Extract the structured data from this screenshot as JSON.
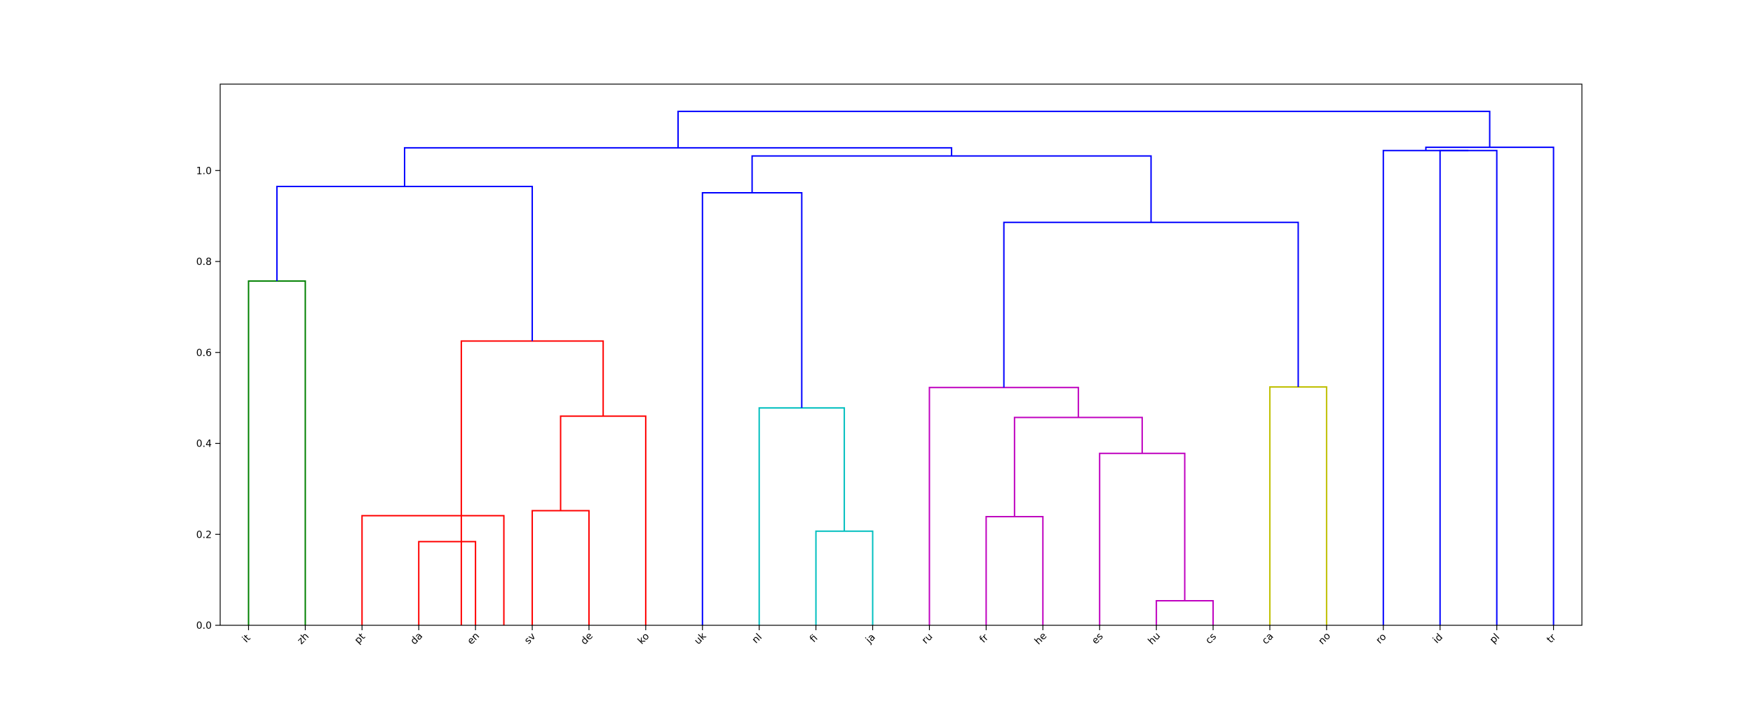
{
  "chart_data": {
    "type": "dendrogram",
    "title": "",
    "xlabel": "",
    "ylabel": "",
    "ylim": [
      0,
      1.19
    ],
    "yticks": [
      "0.0",
      "0.2",
      "0.4",
      "0.6",
      "0.8",
      "1.0"
    ],
    "grid": false,
    "legend": "none",
    "leaves": [
      "it",
      "zh",
      "pt",
      "da",
      "en",
      "sv",
      "de",
      "ko",
      "uk",
      "nl",
      "fi",
      "ja",
      "ru",
      "fr",
      "he",
      "es",
      "hu",
      "cs",
      "ca",
      "no",
      "ro",
      "id",
      "pl",
      "tr"
    ],
    "links": [
      {
        "left": 0,
        "right": 1,
        "height": 0.757,
        "color": "green"
      },
      {
        "left": 3,
        "right": 4,
        "height": 0.184,
        "color": "red"
      },
      {
        "left": 2,
        "right": 4.5,
        "height": 0.241,
        "color": "red"
      },
      {
        "left": 5,
        "right": 6,
        "height": 0.252,
        "color": "red"
      },
      {
        "left": 5.5,
        "right": 7,
        "height": 0.46,
        "color": "red"
      },
      {
        "left": 3.75,
        "right": 6.25,
        "height": 0.625,
        "color": "red"
      },
      {
        "left": 0.5,
        "right": 5.0,
        "height": 0.965,
        "color": "blue"
      },
      {
        "left": 10,
        "right": 11,
        "height": 0.207,
        "color": "cyan"
      },
      {
        "left": 9,
        "right": 10.5,
        "height": 0.478,
        "color": "cyan"
      },
      {
        "left": 8,
        "right": 9.75,
        "height": 0.951,
        "color": "blue"
      },
      {
        "left": 13,
        "right": 14,
        "height": 0.239,
        "color": "magenta"
      },
      {
        "left": 16,
        "right": 17,
        "height": 0.054,
        "color": "magenta"
      },
      {
        "left": 15,
        "right": 16.5,
        "height": 0.378,
        "color": "magenta"
      },
      {
        "left": 13.5,
        "right": 15.75,
        "height": 0.457,
        "color": "magenta"
      },
      {
        "left": 12,
        "right": 14.625,
        "height": 0.523,
        "color": "magenta"
      },
      {
        "left": 18,
        "right": 19,
        "height": 0.524,
        "color": "yellow"
      },
      {
        "left": 13.3125,
        "right": 18.5,
        "height": 0.886,
        "color": "blue"
      },
      {
        "left": 8.875,
        "right": 15.90625,
        "height": 1.032,
        "color": "blue"
      },
      {
        "left": 2.75,
        "right": 12.390625,
        "height": 1.05,
        "color": "blue"
      },
      {
        "left": 21,
        "right": 22,
        "height": 1.044,
        "color": "blue"
      },
      {
        "left": 20,
        "right": 21.5,
        "height": 1.044,
        "color": "blue"
      },
      {
        "left": 20.75,
        "right": 23,
        "height": 1.051,
        "color": "blue"
      },
      {
        "left": 7.5703125,
        "right": 21.875,
        "height": 1.13,
        "color": "blue"
      }
    ],
    "colors": {
      "green": "#008000",
      "red": "#ff0000",
      "blue": "#0000ff",
      "cyan": "#00bfbf",
      "magenta": "#bf00bf",
      "yellow": "#bfbf00"
    }
  }
}
